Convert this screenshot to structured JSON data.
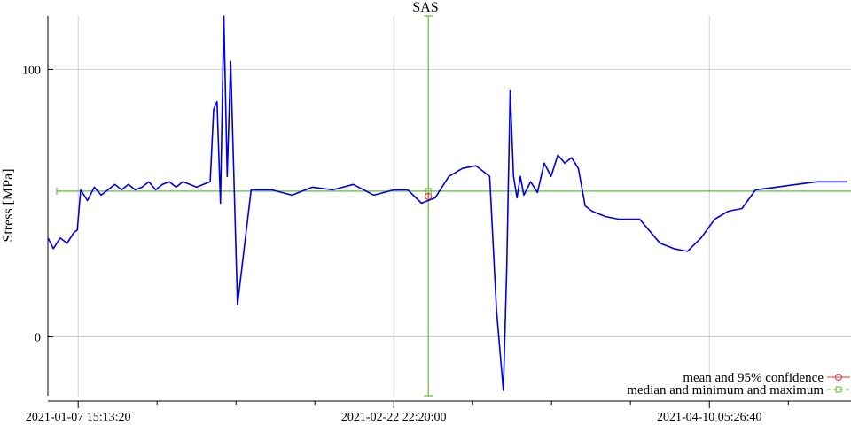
{
  "chart_data": {
    "type": "line",
    "title": "SAS",
    "xlabel": "",
    "ylabel": "Stress [MPa]",
    "grid": true,
    "legend_placement": "bottom-right",
    "ylim": [
      -22,
      120
    ],
    "xlim": [
      "2021-01-03 04:30:00",
      "2021-05-01 00:00:00"
    ],
    "x_ticks": [
      "2021-01-07 15:13:20",
      "2021-02-22 22:20:00",
      "2021-04-10 05:26:40"
    ],
    "y_ticks": [
      0,
      100
    ],
    "colors": {
      "signal": "#0000e0",
      "median": "#66bb33",
      "mean": "#ee3333",
      "grid": "#d0d0d0"
    },
    "legend": [
      {
        "label": "mean and 95% confidence",
        "color": "#ee3333",
        "marker": "circle"
      },
      {
        "label": "median and minimum and maximum",
        "color": "#66bb33",
        "marker": "square"
      }
    ],
    "median": {
      "x": "2021-02-28 00:00:00",
      "y": 54.5,
      "min": -22,
      "max": 120
    },
    "mean": {
      "x": "2021-02-28 00:00:00",
      "y": 52.5,
      "ci": [
        51.5,
        53.5
      ]
    },
    "series": [
      {
        "x": [
          "2021-01-03 05:00:00",
          "2021-01-04 00:00:00",
          "2021-01-05 00:00:00",
          "2021-01-06 00:00:00",
          "2021-01-07 00:00:00",
          "2021-01-07 12:00:00",
          "2021-01-08 00:00:00",
          "2021-01-09 00:00:00",
          "2021-01-10 00:00:00",
          "2021-01-11 00:00:00",
          "2021-01-12 00:00:00",
          "2021-01-13 00:00:00",
          "2021-01-14 00:00:00",
          "2021-01-15 00:00:00",
          "2021-01-16 00:00:00",
          "2021-01-17 00:00:00",
          "2021-01-18 00:00:00",
          "2021-01-19 00:00:00",
          "2021-01-20 00:00:00",
          "2021-01-21 00:00:00",
          "2021-01-22 00:00:00",
          "2021-01-23 00:00:00",
          "2021-01-24 00:00:00",
          "2021-01-25 00:00:00",
          "2021-01-26 00:00:00",
          "2021-01-27 00:00:00",
          "2021-01-27 12:00:00",
          "2021-01-28 00:00:00",
          "2021-01-28 12:00:00",
          "2021-01-29 00:00:00",
          "2021-01-29 12:00:00",
          "2021-01-30 00:00:00",
          "2021-01-31 00:00:00",
          "2021-02-02 00:00:00",
          "2021-02-05 00:00:00",
          "2021-02-08 00:00:00",
          "2021-02-11 00:00:00",
          "2021-02-14 00:00:00",
          "2021-02-17 00:00:00",
          "2021-02-20 00:00:00",
          "2021-02-23 00:00:00",
          "2021-02-25 00:00:00",
          "2021-02-27 00:00:00",
          "2021-03-01 00:00:00",
          "2021-03-03 00:00:00",
          "2021-03-05 00:00:00",
          "2021-03-07 00:00:00",
          "2021-03-09 00:00:00",
          "2021-03-10 00:00:00",
          "2021-03-11 00:00:00",
          "2021-03-11 12:00:00",
          "2021-03-12 00:00:00",
          "2021-03-12 12:00:00",
          "2021-03-13 00:00:00",
          "2021-03-13 12:00:00",
          "2021-03-14 00:00:00",
          "2021-03-15 00:00:00",
          "2021-03-16 00:00:00",
          "2021-03-17 00:00:00",
          "2021-03-18 00:00:00",
          "2021-03-19 00:00:00",
          "2021-03-20 00:00:00",
          "2021-03-21 00:00:00",
          "2021-03-22 00:00:00",
          "2021-03-23 00:00:00",
          "2021-03-24 00:00:00",
          "2021-03-26 00:00:00",
          "2021-03-28 00:00:00",
          "2021-03-31 00:00:00",
          "2021-04-03 00:00:00",
          "2021-04-05 00:00:00",
          "2021-04-07 00:00:00",
          "2021-04-09 00:00:00",
          "2021-04-11 00:00:00",
          "2021-04-13 00:00:00",
          "2021-04-15 00:00:00",
          "2021-04-17 00:00:00",
          "2021-04-20 00:00:00",
          "2021-04-23 00:00:00",
          "2021-04-26 00:00:00",
          "2021-04-29 00:00:00",
          "2021-04-30 12:00:00"
        ],
        "y": [
          37,
          33,
          37,
          35,
          39,
          40,
          55,
          51,
          56,
          53,
          55,
          57,
          55,
          57,
          55,
          56,
          58,
          55,
          57,
          58,
          56,
          58,
          57,
          56,
          57,
          58,
          85,
          88,
          50,
          120,
          60,
          103,
          12,
          55,
          55,
          53,
          56,
          55,
          57,
          53,
          55,
          55,
          50,
          52,
          60,
          63,
          64,
          60,
          10,
          -20,
          25,
          92,
          60,
          52,
          60,
          53,
          58,
          54,
          65,
          60,
          68,
          65,
          67,
          63,
          49,
          47,
          45,
          44,
          44,
          35,
          33,
          32,
          37,
          44,
          47,
          48,
          55,
          56,
          57,
          58,
          58,
          58
        ]
      }
    ]
  }
}
